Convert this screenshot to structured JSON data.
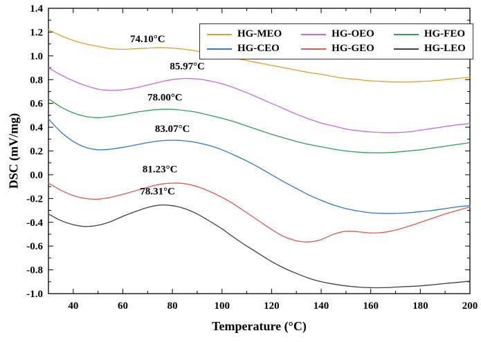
{
  "figure": {
    "background": "#ffffff"
  },
  "chart_data": {
    "type": "line",
    "title": "",
    "xlabel": "Temperature (°C)",
    "ylabel": "DSC (mV/mg)",
    "xlim": [
      30,
      200
    ],
    "ylim": [
      -1.0,
      1.4
    ],
    "xticks": [
      40,
      60,
      80,
      100,
      120,
      140,
      160,
      180,
      200
    ],
    "xminor": [
      50,
      70,
      90,
      110,
      130,
      150,
      170,
      190
    ],
    "yticks": [
      -1.0,
      -0.8,
      -0.6,
      -0.4,
      -0.2,
      0.0,
      0.2,
      0.4,
      0.6,
      0.8,
      1.0,
      1.2,
      1.4
    ],
    "yminor": [
      -0.9,
      -0.7,
      -0.5,
      -0.3,
      -0.1,
      0.1,
      0.3,
      0.5,
      0.7,
      0.9,
      1.1,
      1.3
    ],
    "grid": false,
    "legend_position": "top-inside",
    "x": [
      30,
      35,
      40,
      45,
      50,
      55,
      60,
      65,
      70,
      75,
      80,
      85,
      90,
      95,
      100,
      105,
      110,
      115,
      120,
      125,
      130,
      135,
      140,
      145,
      150,
      155,
      160,
      165,
      170,
      175,
      180,
      185,
      190,
      195,
      200
    ],
    "series": [
      {
        "name": "HG-MEO",
        "color": "#e0a126",
        "peak_label": "74.10°C",
        "y": [
          1.22,
          1.17,
          1.13,
          1.1,
          1.08,
          1.06,
          1.055,
          1.06,
          1.065,
          1.07,
          1.065,
          1.055,
          1.04,
          1.02,
          1.0,
          0.98,
          0.96,
          0.94,
          0.92,
          0.9,
          0.88,
          0.86,
          0.845,
          0.825,
          0.81,
          0.8,
          0.79,
          0.785,
          0.78,
          0.78,
          0.785,
          0.79,
          0.8,
          0.81,
          0.82
        ]
      },
      {
        "name": "HG-OEO",
        "color": "#c36ae2",
        "peak_label": "85.97°C",
        "y": [
          0.9,
          0.84,
          0.79,
          0.75,
          0.72,
          0.71,
          0.715,
          0.73,
          0.755,
          0.78,
          0.8,
          0.81,
          0.805,
          0.79,
          0.765,
          0.73,
          0.69,
          0.645,
          0.6,
          0.555,
          0.51,
          0.47,
          0.435,
          0.41,
          0.385,
          0.37,
          0.36,
          0.355,
          0.355,
          0.36,
          0.375,
          0.39,
          0.405,
          0.42,
          0.43
        ]
      },
      {
        "name": "HG-FEO",
        "color": "#2e9e53",
        "peak_label": "78.00°C",
        "y": [
          0.64,
          0.57,
          0.52,
          0.49,
          0.48,
          0.49,
          0.505,
          0.525,
          0.54,
          0.55,
          0.55,
          0.54,
          0.525,
          0.5,
          0.475,
          0.445,
          0.41,
          0.375,
          0.34,
          0.31,
          0.28,
          0.255,
          0.235,
          0.215,
          0.2,
          0.19,
          0.185,
          0.185,
          0.19,
          0.2,
          0.21,
          0.225,
          0.24,
          0.255,
          0.27
        ]
      },
      {
        "name": "HG-CEO",
        "color": "#3076c9",
        "peak_label": "83.07°C",
        "y": [
          0.47,
          0.36,
          0.28,
          0.23,
          0.21,
          0.215,
          0.23,
          0.25,
          0.27,
          0.285,
          0.29,
          0.285,
          0.27,
          0.245,
          0.21,
          0.165,
          0.115,
          0.06,
          0.0,
          -0.06,
          -0.115,
          -0.17,
          -0.215,
          -0.255,
          -0.285,
          -0.305,
          -0.32,
          -0.325,
          -0.325,
          -0.32,
          -0.31,
          -0.3,
          -0.285,
          -0.27,
          -0.26
        ]
      },
      {
        "name": "HG-GEO",
        "color": "#e65550",
        "peak_label": "81.23°C",
        "y": [
          -0.07,
          -0.13,
          -0.175,
          -0.2,
          -0.205,
          -0.19,
          -0.165,
          -0.135,
          -0.105,
          -0.08,
          -0.07,
          -0.075,
          -0.1,
          -0.14,
          -0.19,
          -0.25,
          -0.32,
          -0.39,
          -0.46,
          -0.52,
          -0.555,
          -0.565,
          -0.545,
          -0.5,
          -0.475,
          -0.48,
          -0.49,
          -0.485,
          -0.465,
          -0.435,
          -0.4,
          -0.365,
          -0.33,
          -0.3,
          -0.27
        ]
      },
      {
        "name": "HG-LEO",
        "color": "#3f3f3f",
        "peak_label": "78.31°C",
        "y": [
          -0.33,
          -0.385,
          -0.42,
          -0.435,
          -0.425,
          -0.395,
          -0.35,
          -0.31,
          -0.275,
          -0.255,
          -0.26,
          -0.285,
          -0.33,
          -0.39,
          -0.455,
          -0.53,
          -0.6,
          -0.665,
          -0.73,
          -0.785,
          -0.83,
          -0.87,
          -0.9,
          -0.92,
          -0.935,
          -0.945,
          -0.95,
          -0.95,
          -0.945,
          -0.94,
          -0.935,
          -0.925,
          -0.915,
          -0.905,
          -0.895
        ]
      }
    ],
    "annotations": [
      {
        "text": "74.10°C",
        "x": 70,
        "y": 1.115
      },
      {
        "text": "85.97°C",
        "x": 86,
        "y": 0.885
      },
      {
        "text": "78.00°C",
        "x": 77,
        "y": 0.625
      },
      {
        "text": "83.07°C",
        "x": 80,
        "y": 0.36
      },
      {
        "text": "81.23°C",
        "x": 75,
        "y": 0.02
      },
      {
        "text": "78.31°C",
        "x": 74,
        "y": -0.165
      }
    ]
  }
}
